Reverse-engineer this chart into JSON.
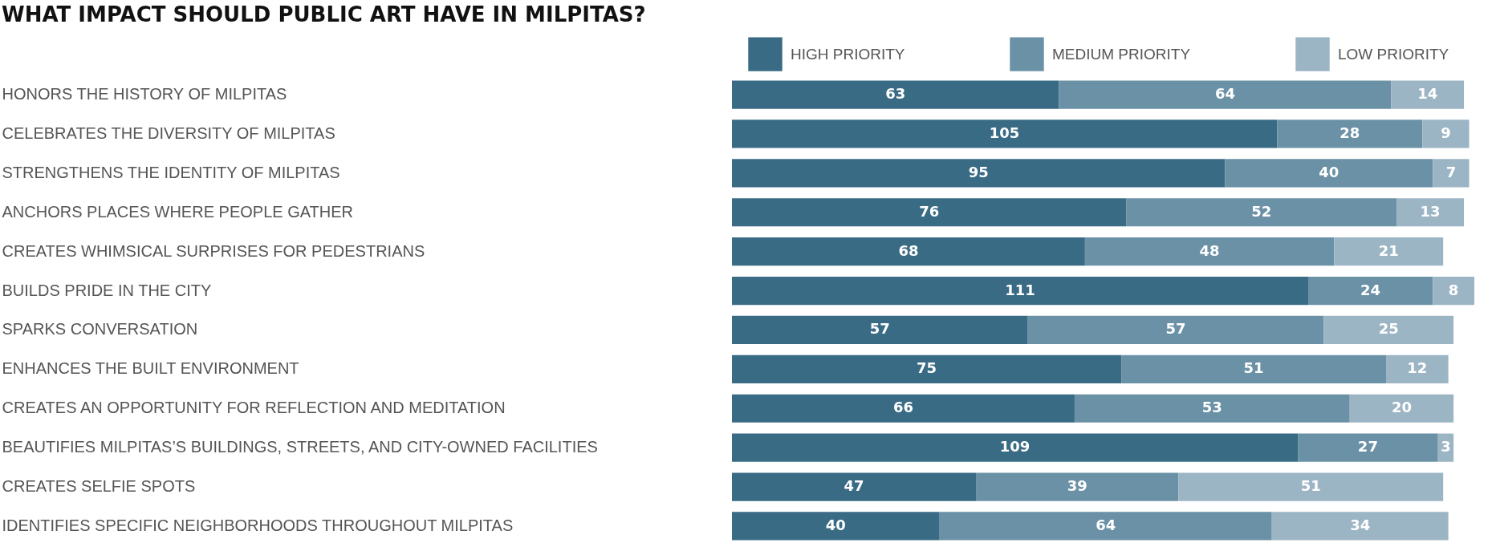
{
  "chart_data": {
    "type": "bar",
    "orientation": "horizontal",
    "stacked": true,
    "title": "WHAT IMPACT SHOULD PUBLIC ART HAVE IN MILPITAS?",
    "categories": [
      "HONORS THE HISTORY OF MILPITAS",
      "CELEBRATES THE DIVERSITY OF MILPITAS",
      "STRENGTHENS THE IDENTITY OF MILPITAS",
      "ANCHORS PLACES WHERE PEOPLE GATHER",
      "CREATES WHIMSICAL SURPRISES FOR PEDESTRIANS",
      "BUILDS PRIDE IN THE CITY",
      "SPARKS CONVERSATION",
      "ENHANCES THE BUILT ENVIRONMENT",
      "CREATES AN OPPORTUNITY FOR REFLECTION AND MEDITATION",
      "BEAUTIFIES MILPITAS’S BUILDINGS, STREETS, AND CITY-OWNED FACILITIES",
      "CREATES SELFIE SPOTS",
      "IDENTIFIES SPECIFIC NEIGHBORHOODS THROUGHOUT MILPITAS"
    ],
    "series": [
      {
        "name": "HIGH PRIORITY",
        "color": "#3a6b85",
        "values": [
          63,
          105,
          95,
          76,
          68,
          111,
          57,
          75,
          66,
          109,
          47,
          40
        ]
      },
      {
        "name": "MEDIUM PRIORITY",
        "color": "#6b91a6",
        "values": [
          64,
          28,
          40,
          52,
          48,
          24,
          57,
          51,
          53,
          27,
          39,
          64
        ]
      },
      {
        "name": "LOW PRIORITY",
        "color": "#9cb5c4",
        "values": [
          14,
          9,
          7,
          13,
          21,
          8,
          25,
          12,
          20,
          3,
          51,
          34
        ]
      }
    ],
    "xlim": [
      0,
      143
    ],
    "data_labels": true,
    "legend": "top",
    "tick_labels": "y"
  }
}
